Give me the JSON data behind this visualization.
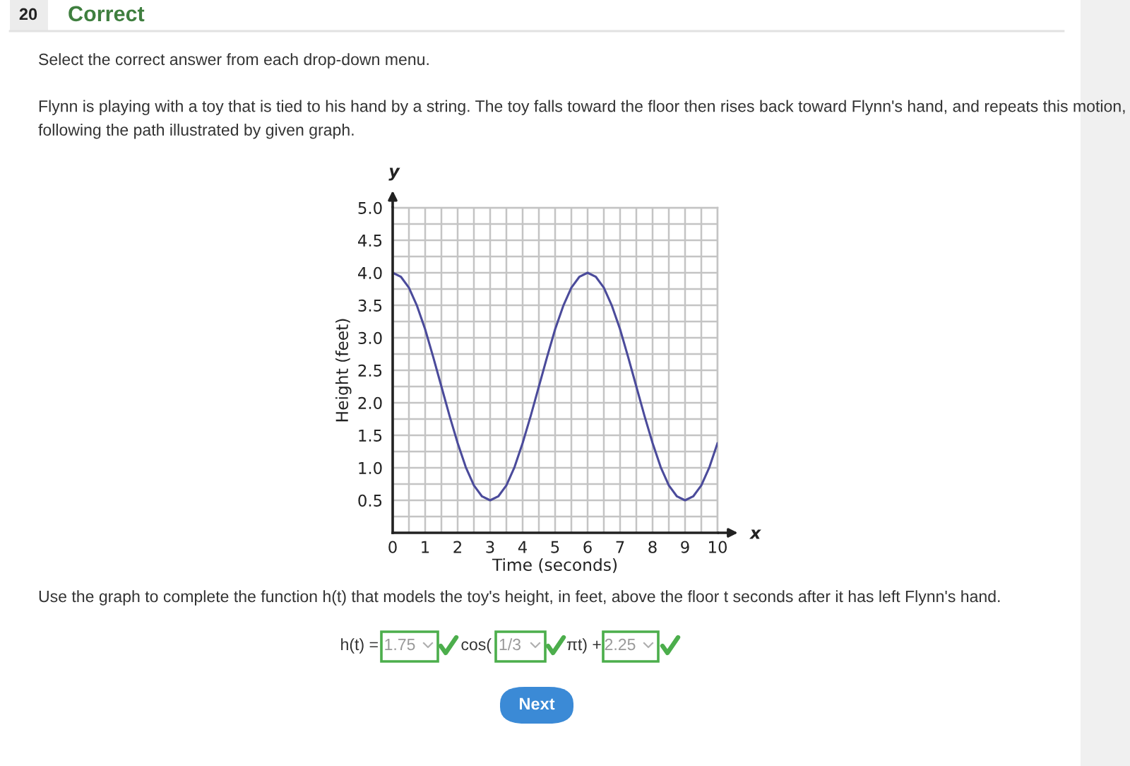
{
  "chart_data": {
    "type": "line",
    "xlabel": "Time (seconds)",
    "ylabel": "Height (feet)",
    "x": [
      0,
      0.25,
      0.5,
      0.75,
      1,
      1.25,
      1.5,
      1.75,
      2,
      2.25,
      2.5,
      2.75,
      3,
      3.25,
      3.5,
      3.75,
      4,
      4.25,
      4.5,
      4.75,
      5,
      5.25,
      5.5,
      5.75,
      6,
      6.25,
      6.5,
      6.75,
      7,
      7.25,
      7.5,
      7.75,
      8,
      8.25,
      8.5,
      8.75,
      9,
      9.25,
      9.5,
      9.75,
      10
    ],
    "values": [
      4.0,
      3.94,
      3.77,
      3.49,
      3.13,
      2.7,
      2.25,
      1.8,
      1.38,
      1.01,
      0.73,
      0.56,
      0.5,
      0.56,
      0.73,
      1.01,
      1.38,
      1.8,
      2.25,
      2.7,
      3.13,
      3.49,
      3.77,
      3.94,
      4.0,
      3.94,
      3.77,
      3.49,
      3.13,
      2.7,
      2.25,
      1.8,
      1.38,
      1.01,
      0.73,
      0.56,
      0.5,
      0.56,
      0.73,
      1.01,
      1.38
    ],
    "color": "#4b4b9b",
    "xlim": [
      0,
      10
    ],
    "ylim": [
      0,
      5
    ],
    "xticks": [
      0,
      {
        "value": 0.5,
        "label": null
      },
      1,
      {
        "value": 1.5,
        "label": null
      },
      2,
      {
        "value": 2.5,
        "label": null
      },
      3,
      {
        "value": 3.5,
        "label": null
      },
      4,
      {
        "value": 4.5,
        "label": null
      },
      5,
      {
        "value": 5.5,
        "label": null
      },
      6,
      {
        "value": 6.5,
        "label": null
      },
      7,
      {
        "value": 7.5,
        "label": null
      },
      8,
      {
        "value": 8.5,
        "label": null
      },
      9,
      {
        "value": 9.5,
        "label": null
      },
      10
    ],
    "yticks": [
      {
        "value": 0.25,
        "label": null
      },
      {
        "value": 0.5,
        "label": "0.5"
      },
      {
        "value": 0.75,
        "label": null
      },
      {
        "value": 1,
        "label": "1.0"
      },
      {
        "value": 1.25,
        "label": null
      },
      {
        "value": 1.5,
        "label": "1.5"
      },
      {
        "value": 1.75,
        "label": null
      },
      {
        "value": 2,
        "label": "2.0"
      },
      {
        "value": 2.25,
        "label": null
      },
      {
        "value": 2.5,
        "label": "2.5"
      },
      {
        "value": 2.75,
        "label": null
      },
      {
        "value": 3,
        "label": "3.0"
      },
      {
        "value": 3.25,
        "label": null
      },
      {
        "value": 3.5,
        "label": "3.5"
      },
      {
        "value": 3.75,
        "label": null
      },
      {
        "value": 4,
        "label": "4.0"
      },
      {
        "value": 4.25,
        "label": null
      },
      {
        "value": 4.5,
        "label": "4.5"
      },
      {
        "value": 4.75,
        "label": null
      },
      {
        "value": 5,
        "label": "5.0"
      }
    ],
    "grid": true,
    "annotations": [
      "20",
      "Correct",
      "Select the correct answer from each drop-down menu.",
      "Flynn is playing with a toy that is tied to his hand by a string. The toy falls toward the floor then rises back toward Flynn's hand, and repeats this motion,\nfollowing the path illustrated by given graph.",
      "Use the graph to complete the function h(t) that models the toy's height, in feet, above the floor t seconds after it has left Flynn's hand.",
      "h(t) =",
      "1.75",
      "cos(",
      "1/3",
      "πt) +",
      "2.25",
      "Next",
      "x",
      "y"
    ]
  }
}
